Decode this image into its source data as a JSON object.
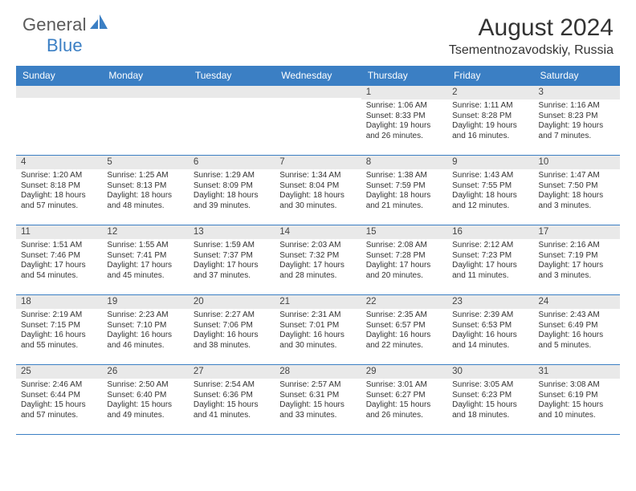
{
  "brand": {
    "name1": "General",
    "name2": "Blue"
  },
  "title": "August 2024",
  "location": "Tsementnozavodskiy, Russia",
  "colors": {
    "header_bg": "#3b7fc4",
    "header_text": "#ffffff",
    "daynum_bg": "#e9e9e9",
    "body_text": "#333333",
    "rule": "#3b7fc4"
  },
  "day_headers": [
    "Sunday",
    "Monday",
    "Tuesday",
    "Wednesday",
    "Thursday",
    "Friday",
    "Saturday"
  ],
  "weeks": [
    [
      null,
      null,
      null,
      null,
      {
        "n": "1",
        "sunrise": "1:06 AM",
        "sunset": "8:33 PM",
        "dl1": "Daylight: 19 hours",
        "dl2": "and 26 minutes."
      },
      {
        "n": "2",
        "sunrise": "1:11 AM",
        "sunset": "8:28 PM",
        "dl1": "Daylight: 19 hours",
        "dl2": "and 16 minutes."
      },
      {
        "n": "3",
        "sunrise": "1:16 AM",
        "sunset": "8:23 PM",
        "dl1": "Daylight: 19 hours",
        "dl2": "and 7 minutes."
      }
    ],
    [
      {
        "n": "4",
        "sunrise": "1:20 AM",
        "sunset": "8:18 PM",
        "dl1": "Daylight: 18 hours",
        "dl2": "and 57 minutes."
      },
      {
        "n": "5",
        "sunrise": "1:25 AM",
        "sunset": "8:13 PM",
        "dl1": "Daylight: 18 hours",
        "dl2": "and 48 minutes."
      },
      {
        "n": "6",
        "sunrise": "1:29 AM",
        "sunset": "8:09 PM",
        "dl1": "Daylight: 18 hours",
        "dl2": "and 39 minutes."
      },
      {
        "n": "7",
        "sunrise": "1:34 AM",
        "sunset": "8:04 PM",
        "dl1": "Daylight: 18 hours",
        "dl2": "and 30 minutes."
      },
      {
        "n": "8",
        "sunrise": "1:38 AM",
        "sunset": "7:59 PM",
        "dl1": "Daylight: 18 hours",
        "dl2": "and 21 minutes."
      },
      {
        "n": "9",
        "sunrise": "1:43 AM",
        "sunset": "7:55 PM",
        "dl1": "Daylight: 18 hours",
        "dl2": "and 12 minutes."
      },
      {
        "n": "10",
        "sunrise": "1:47 AM",
        "sunset": "7:50 PM",
        "dl1": "Daylight: 18 hours",
        "dl2": "and 3 minutes."
      }
    ],
    [
      {
        "n": "11",
        "sunrise": "1:51 AM",
        "sunset": "7:46 PM",
        "dl1": "Daylight: 17 hours",
        "dl2": "and 54 minutes."
      },
      {
        "n": "12",
        "sunrise": "1:55 AM",
        "sunset": "7:41 PM",
        "dl1": "Daylight: 17 hours",
        "dl2": "and 45 minutes."
      },
      {
        "n": "13",
        "sunrise": "1:59 AM",
        "sunset": "7:37 PM",
        "dl1": "Daylight: 17 hours",
        "dl2": "and 37 minutes."
      },
      {
        "n": "14",
        "sunrise": "2:03 AM",
        "sunset": "7:32 PM",
        "dl1": "Daylight: 17 hours",
        "dl2": "and 28 minutes."
      },
      {
        "n": "15",
        "sunrise": "2:08 AM",
        "sunset": "7:28 PM",
        "dl1": "Daylight: 17 hours",
        "dl2": "and 20 minutes."
      },
      {
        "n": "16",
        "sunrise": "2:12 AM",
        "sunset": "7:23 PM",
        "dl1": "Daylight: 17 hours",
        "dl2": "and 11 minutes."
      },
      {
        "n": "17",
        "sunrise": "2:16 AM",
        "sunset": "7:19 PM",
        "dl1": "Daylight: 17 hours",
        "dl2": "and 3 minutes."
      }
    ],
    [
      {
        "n": "18",
        "sunrise": "2:19 AM",
        "sunset": "7:15 PM",
        "dl1": "Daylight: 16 hours",
        "dl2": "and 55 minutes."
      },
      {
        "n": "19",
        "sunrise": "2:23 AM",
        "sunset": "7:10 PM",
        "dl1": "Daylight: 16 hours",
        "dl2": "and 46 minutes."
      },
      {
        "n": "20",
        "sunrise": "2:27 AM",
        "sunset": "7:06 PM",
        "dl1": "Daylight: 16 hours",
        "dl2": "and 38 minutes."
      },
      {
        "n": "21",
        "sunrise": "2:31 AM",
        "sunset": "7:01 PM",
        "dl1": "Daylight: 16 hours",
        "dl2": "and 30 minutes."
      },
      {
        "n": "22",
        "sunrise": "2:35 AM",
        "sunset": "6:57 PM",
        "dl1": "Daylight: 16 hours",
        "dl2": "and 22 minutes."
      },
      {
        "n": "23",
        "sunrise": "2:39 AM",
        "sunset": "6:53 PM",
        "dl1": "Daylight: 16 hours",
        "dl2": "and 14 minutes."
      },
      {
        "n": "24",
        "sunrise": "2:43 AM",
        "sunset": "6:49 PM",
        "dl1": "Daylight: 16 hours",
        "dl2": "and 5 minutes."
      }
    ],
    [
      {
        "n": "25",
        "sunrise": "2:46 AM",
        "sunset": "6:44 PM",
        "dl1": "Daylight: 15 hours",
        "dl2": "and 57 minutes."
      },
      {
        "n": "26",
        "sunrise": "2:50 AM",
        "sunset": "6:40 PM",
        "dl1": "Daylight: 15 hours",
        "dl2": "and 49 minutes."
      },
      {
        "n": "27",
        "sunrise": "2:54 AM",
        "sunset": "6:36 PM",
        "dl1": "Daylight: 15 hours",
        "dl2": "and 41 minutes."
      },
      {
        "n": "28",
        "sunrise": "2:57 AM",
        "sunset": "6:31 PM",
        "dl1": "Daylight: 15 hours",
        "dl2": "and 33 minutes."
      },
      {
        "n": "29",
        "sunrise": "3:01 AM",
        "sunset": "6:27 PM",
        "dl1": "Daylight: 15 hours",
        "dl2": "and 26 minutes."
      },
      {
        "n": "30",
        "sunrise": "3:05 AM",
        "sunset": "6:23 PM",
        "dl1": "Daylight: 15 hours",
        "dl2": "and 18 minutes."
      },
      {
        "n": "31",
        "sunrise": "3:08 AM",
        "sunset": "6:19 PM",
        "dl1": "Daylight: 15 hours",
        "dl2": "and 10 minutes."
      }
    ]
  ],
  "labels": {
    "sunrise_prefix": "Sunrise: ",
    "sunset_prefix": "Sunset: "
  }
}
